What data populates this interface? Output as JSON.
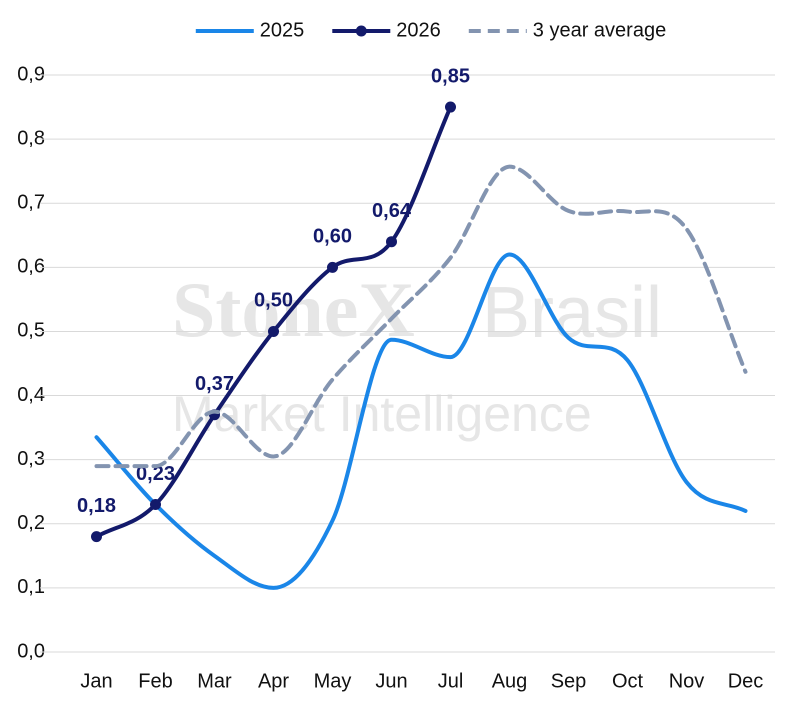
{
  "chart_data": {
    "type": "line",
    "watermark": [
      "StoneX",
      "Brasil",
      "Market Intelligence"
    ],
    "categories": [
      "Jan",
      "Feb",
      "Mar",
      "Apr",
      "May",
      "Jun",
      "Jul",
      "Aug",
      "Sep",
      "Oct",
      "Nov",
      "Dec"
    ],
    "series": [
      {
        "name": "2025",
        "color": "#1a86e8",
        "dash": false,
        "markers": false,
        "values": [
          0.335,
          0.23,
          0.15,
          0.1,
          0.205,
          0.487,
          0.46,
          0.62,
          0.49,
          0.455,
          0.265,
          0.22
        ]
      },
      {
        "name": "2026",
        "color": "#131a6b",
        "dash": false,
        "markers": true,
        "values": [
          0.18,
          0.23,
          0.37,
          0.5,
          0.6,
          0.64,
          0.85,
          null,
          null,
          null,
          null,
          null
        ],
        "value_labels": [
          "0,18",
          "0,23",
          "0,37",
          "0,50",
          "0,60",
          "0,64",
          "0,85",
          null,
          null,
          null,
          null,
          null
        ]
      },
      {
        "name": "3 year average",
        "color": "#8394b0",
        "dash": true,
        "markers": false,
        "values": [
          0.29,
          0.29,
          0.375,
          0.305,
          0.425,
          0.52,
          0.615,
          0.757,
          0.688,
          0.687,
          0.66,
          0.437
        ]
      }
    ],
    "ylim": [
      0,
      0.9
    ],
    "yticks": [
      {
        "value": 0,
        "label": "0,0"
      },
      {
        "value": 0.1,
        "label": "0,1"
      },
      {
        "value": 0.2,
        "label": "0,2"
      },
      {
        "value": 0.3,
        "label": "0,3"
      },
      {
        "value": 0.4,
        "label": "0,4"
      },
      {
        "value": 0.5,
        "label": "0,5"
      },
      {
        "value": 0.6,
        "label": "0,6"
      },
      {
        "value": 0.7,
        "label": "0,7"
      },
      {
        "value": 0.8,
        "label": "0,8"
      },
      {
        "value": 0.9,
        "label": "0,9"
      }
    ],
    "grid": true,
    "legend": "top"
  }
}
